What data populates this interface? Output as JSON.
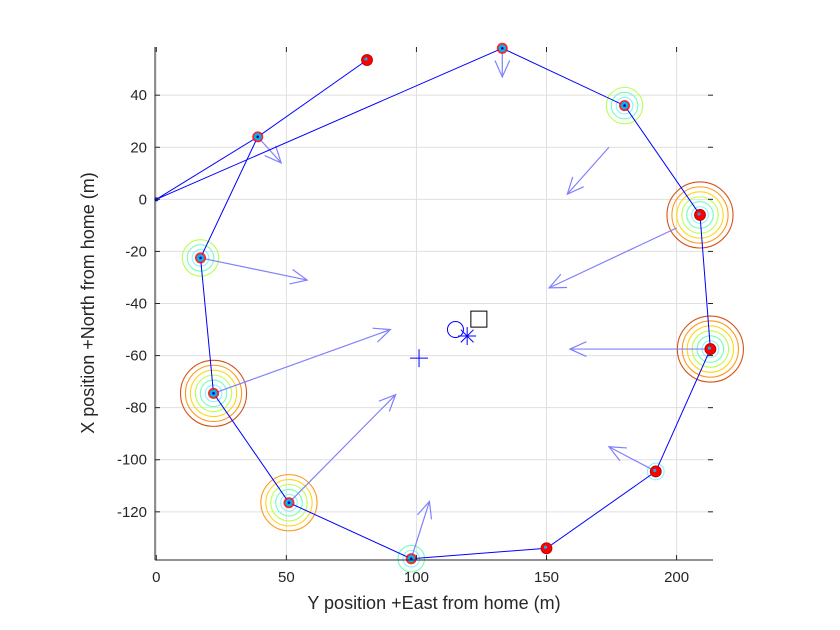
{
  "chart_data": {
    "type": "scatter",
    "title": "",
    "xlabel": "Y position +East from home (m)",
    "ylabel": "X position +North from home (m)",
    "xlim": [
      -0.5,
      214
    ],
    "ylim": [
      -138.5,
      58.5
    ],
    "xticks": [
      0,
      50,
      100,
      150,
      200
    ],
    "yticks": [
      -120,
      -100,
      -80,
      -60,
      -40,
      -20,
      0,
      20,
      40
    ],
    "grid": true,
    "colors": {
      "path": "#0000ff",
      "arrow": "#8080ff",
      "red_marker": "#ff0000",
      "cyan_marker": "#00b4f0",
      "rings": [
        "#80f0ff",
        "#60ffb0",
        "#b0ff40",
        "#ffd000",
        "#ff8c00",
        "#d04000"
      ]
    },
    "flight_path": [
      [
        81,
        53.5
      ],
      [
        39,
        24
      ],
      [
        0,
        0
      ],
      [
        133,
        58
      ],
      [
        180,
        36
      ],
      [
        209,
        -6
      ],
      [
        213,
        -57.5
      ],
      [
        192,
        -104.5
      ],
      [
        150,
        -134
      ],
      [
        98,
        -138
      ],
      [
        51,
        -116.5
      ],
      [
        22,
        -74.5
      ],
      [
        17,
        -22.5
      ],
      [
        39,
        24
      ]
    ],
    "waypoints": [
      {
        "x": 81,
        "y": 53.5,
        "kind": "red",
        "rings": 0
      },
      {
        "x": 39,
        "y": 24,
        "kind": "blue",
        "rings": 0
      },
      {
        "x": 133,
        "y": 58,
        "kind": "blue",
        "rings": 0
      },
      {
        "x": 180,
        "y": 36,
        "kind": "blue",
        "rings": 3
      },
      {
        "x": 209,
        "y": -6,
        "kind": "red",
        "rings": 6
      },
      {
        "x": 213,
        "y": -57.5,
        "kind": "red",
        "rings": 6
      },
      {
        "x": 192,
        "y": -104.5,
        "kind": "red",
        "rings": 1
      },
      {
        "x": 150,
        "y": -134,
        "kind": "red",
        "rings": 0
      },
      {
        "x": 98,
        "y": -138,
        "kind": "blue",
        "rings": 2
      },
      {
        "x": 51,
        "y": -116.5,
        "kind": "blue",
        "rings": 5
      },
      {
        "x": 22,
        "y": -74.5,
        "kind": "blue",
        "rings": 6
      },
      {
        "x": 17,
        "y": -22.5,
        "kind": "blue",
        "rings": 3
      }
    ],
    "vectors": [
      {
        "x0": 133,
        "y0": 58,
        "x1": 133,
        "y1": 47
      },
      {
        "x0": 39,
        "y0": 24,
        "x1": 48,
        "y1": 14
      },
      {
        "x0": 174,
        "y0": 20,
        "x1": 158,
        "y1": 2
      },
      {
        "x0": 200,
        "y0": -11,
        "x1": 151,
        "y1": -34
      },
      {
        "x0": 213,
        "y0": -57.5,
        "x1": 159,
        "y1": -57.5
      },
      {
        "x0": 192,
        "y0": -104.5,
        "x1": 174,
        "y1": -95
      },
      {
        "x0": 98,
        "y0": -138,
        "x1": 105,
        "y1": -116
      },
      {
        "x0": 51,
        "y0": -116.5,
        "x1": 92,
        "y1": -75
      },
      {
        "x0": 22,
        "y0": -74.5,
        "x1": 90,
        "y1": -50
      },
      {
        "x0": 17,
        "y0": -22.5,
        "x1": 58,
        "y1": -31
      }
    ],
    "centers": [
      {
        "marker": "plus",
        "x": 101,
        "y": -61
      },
      {
        "marker": "circle",
        "x": 115,
        "y": -50
      },
      {
        "marker": "square",
        "x": 124,
        "y": -46
      },
      {
        "marker": "asterisk",
        "x": 119.5,
        "y": -52.5
      }
    ]
  }
}
